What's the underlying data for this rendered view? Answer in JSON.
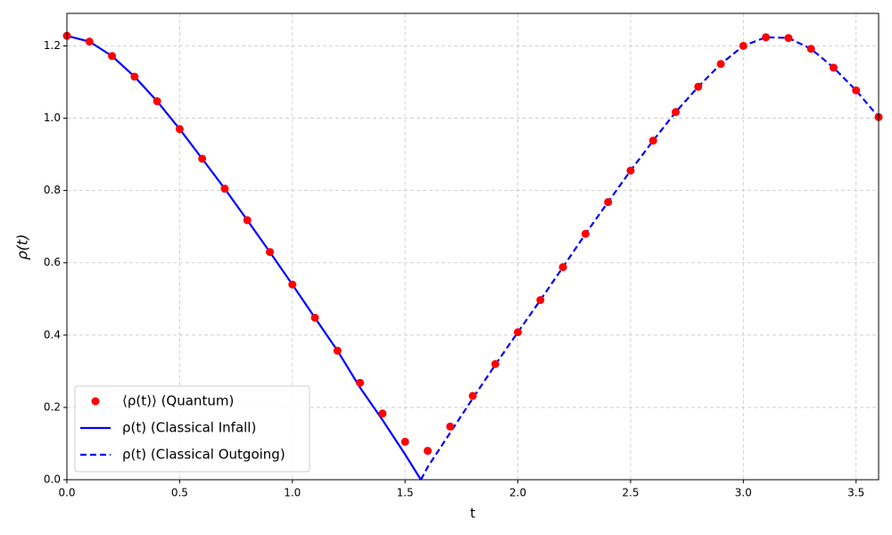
{
  "chart_data": {
    "type": "line",
    "xlabel": "t",
    "ylabel": "ρ(t)",
    "xlim": [
      0,
      3.6
    ],
    "ylim": [
      0,
      1.29
    ],
    "xticks": [
      {
        "value": 0,
        "label": "0.0"
      },
      0.5,
      {
        "value": 1,
        "label": "1.0"
      },
      1.5,
      {
        "value": 2,
        "label": "2.0"
      },
      2.5,
      {
        "value": 3,
        "label": "3.0"
      },
      3.5
    ],
    "yticks": [
      {
        "value": 0,
        "label": "0.0"
      },
      0.2,
      0.4,
      0.6,
      0.8,
      {
        "value": 1,
        "label": "1.0"
      },
      1.2
    ],
    "grid": true,
    "legend": "lower left",
    "series": [
      {
        "name": "⟨ρ(t)⟩ (Quantum)",
        "color": "#ff0000",
        "style": "scatter",
        "x": [
          0,
          0.1,
          0.2,
          0.3,
          0.4,
          0.5,
          0.6,
          0.7,
          0.8,
          0.9,
          1.0,
          1.1,
          1.2,
          1.3,
          1.4,
          1.5,
          1.6,
          1.7,
          1.8,
          1.9,
          2.0,
          2.1,
          2.2,
          2.3,
          2.4,
          2.5,
          2.6,
          2.7,
          2.8,
          2.9,
          3.0,
          3.1,
          3.2,
          3.3,
          3.4,
          3.5,
          3.6
        ],
        "values": [
          1.228,
          1.212,
          1.172,
          1.115,
          1.047,
          0.97,
          0.888,
          0.805,
          0.718,
          0.63,
          0.54,
          0.448,
          0.357,
          0.268,
          0.183,
          0.105,
          0.08,
          0.147,
          0.232,
          0.32,
          0.408,
          0.497,
          0.588,
          0.68,
          0.768,
          0.855,
          0.938,
          1.017,
          1.087,
          1.15,
          1.2,
          1.224,
          1.222,
          1.192,
          1.14,
          1.077,
          1.003
        ]
      },
      {
        "name": "ρ(t) (Classical Infall)",
        "color": "#0000ff",
        "style": "solid",
        "x": [
          0,
          0.1,
          0.2,
          0.3,
          0.4,
          0.5,
          0.6,
          0.7,
          0.8,
          0.9,
          1.0,
          1.1,
          1.2,
          1.3,
          1.4,
          1.5,
          1.57
        ],
        "values": [
          1.228,
          1.212,
          1.172,
          1.115,
          1.047,
          0.97,
          0.888,
          0.805,
          0.718,
          0.63,
          0.54,
          0.448,
          0.357,
          0.255,
          0.165,
          0.07,
          0
        ]
      },
      {
        "name": "ρ(t) (Classical Outgoing)",
        "color": "#0000ff",
        "style": "dashed",
        "x": [
          1.57,
          1.6,
          1.7,
          1.8,
          1.9,
          2.0,
          2.1,
          2.2,
          2.3,
          2.4,
          2.5,
          2.6,
          2.7,
          2.8,
          2.9,
          3.0,
          3.1,
          3.2,
          3.3,
          3.4,
          3.5,
          3.6
        ],
        "values": [
          0,
          0.035,
          0.13,
          0.225,
          0.318,
          0.408,
          0.497,
          0.588,
          0.68,
          0.768,
          0.855,
          0.938,
          1.017,
          1.087,
          1.15,
          1.2,
          1.224,
          1.222,
          1.192,
          1.14,
          1.077,
          1.003
        ]
      }
    ]
  }
}
